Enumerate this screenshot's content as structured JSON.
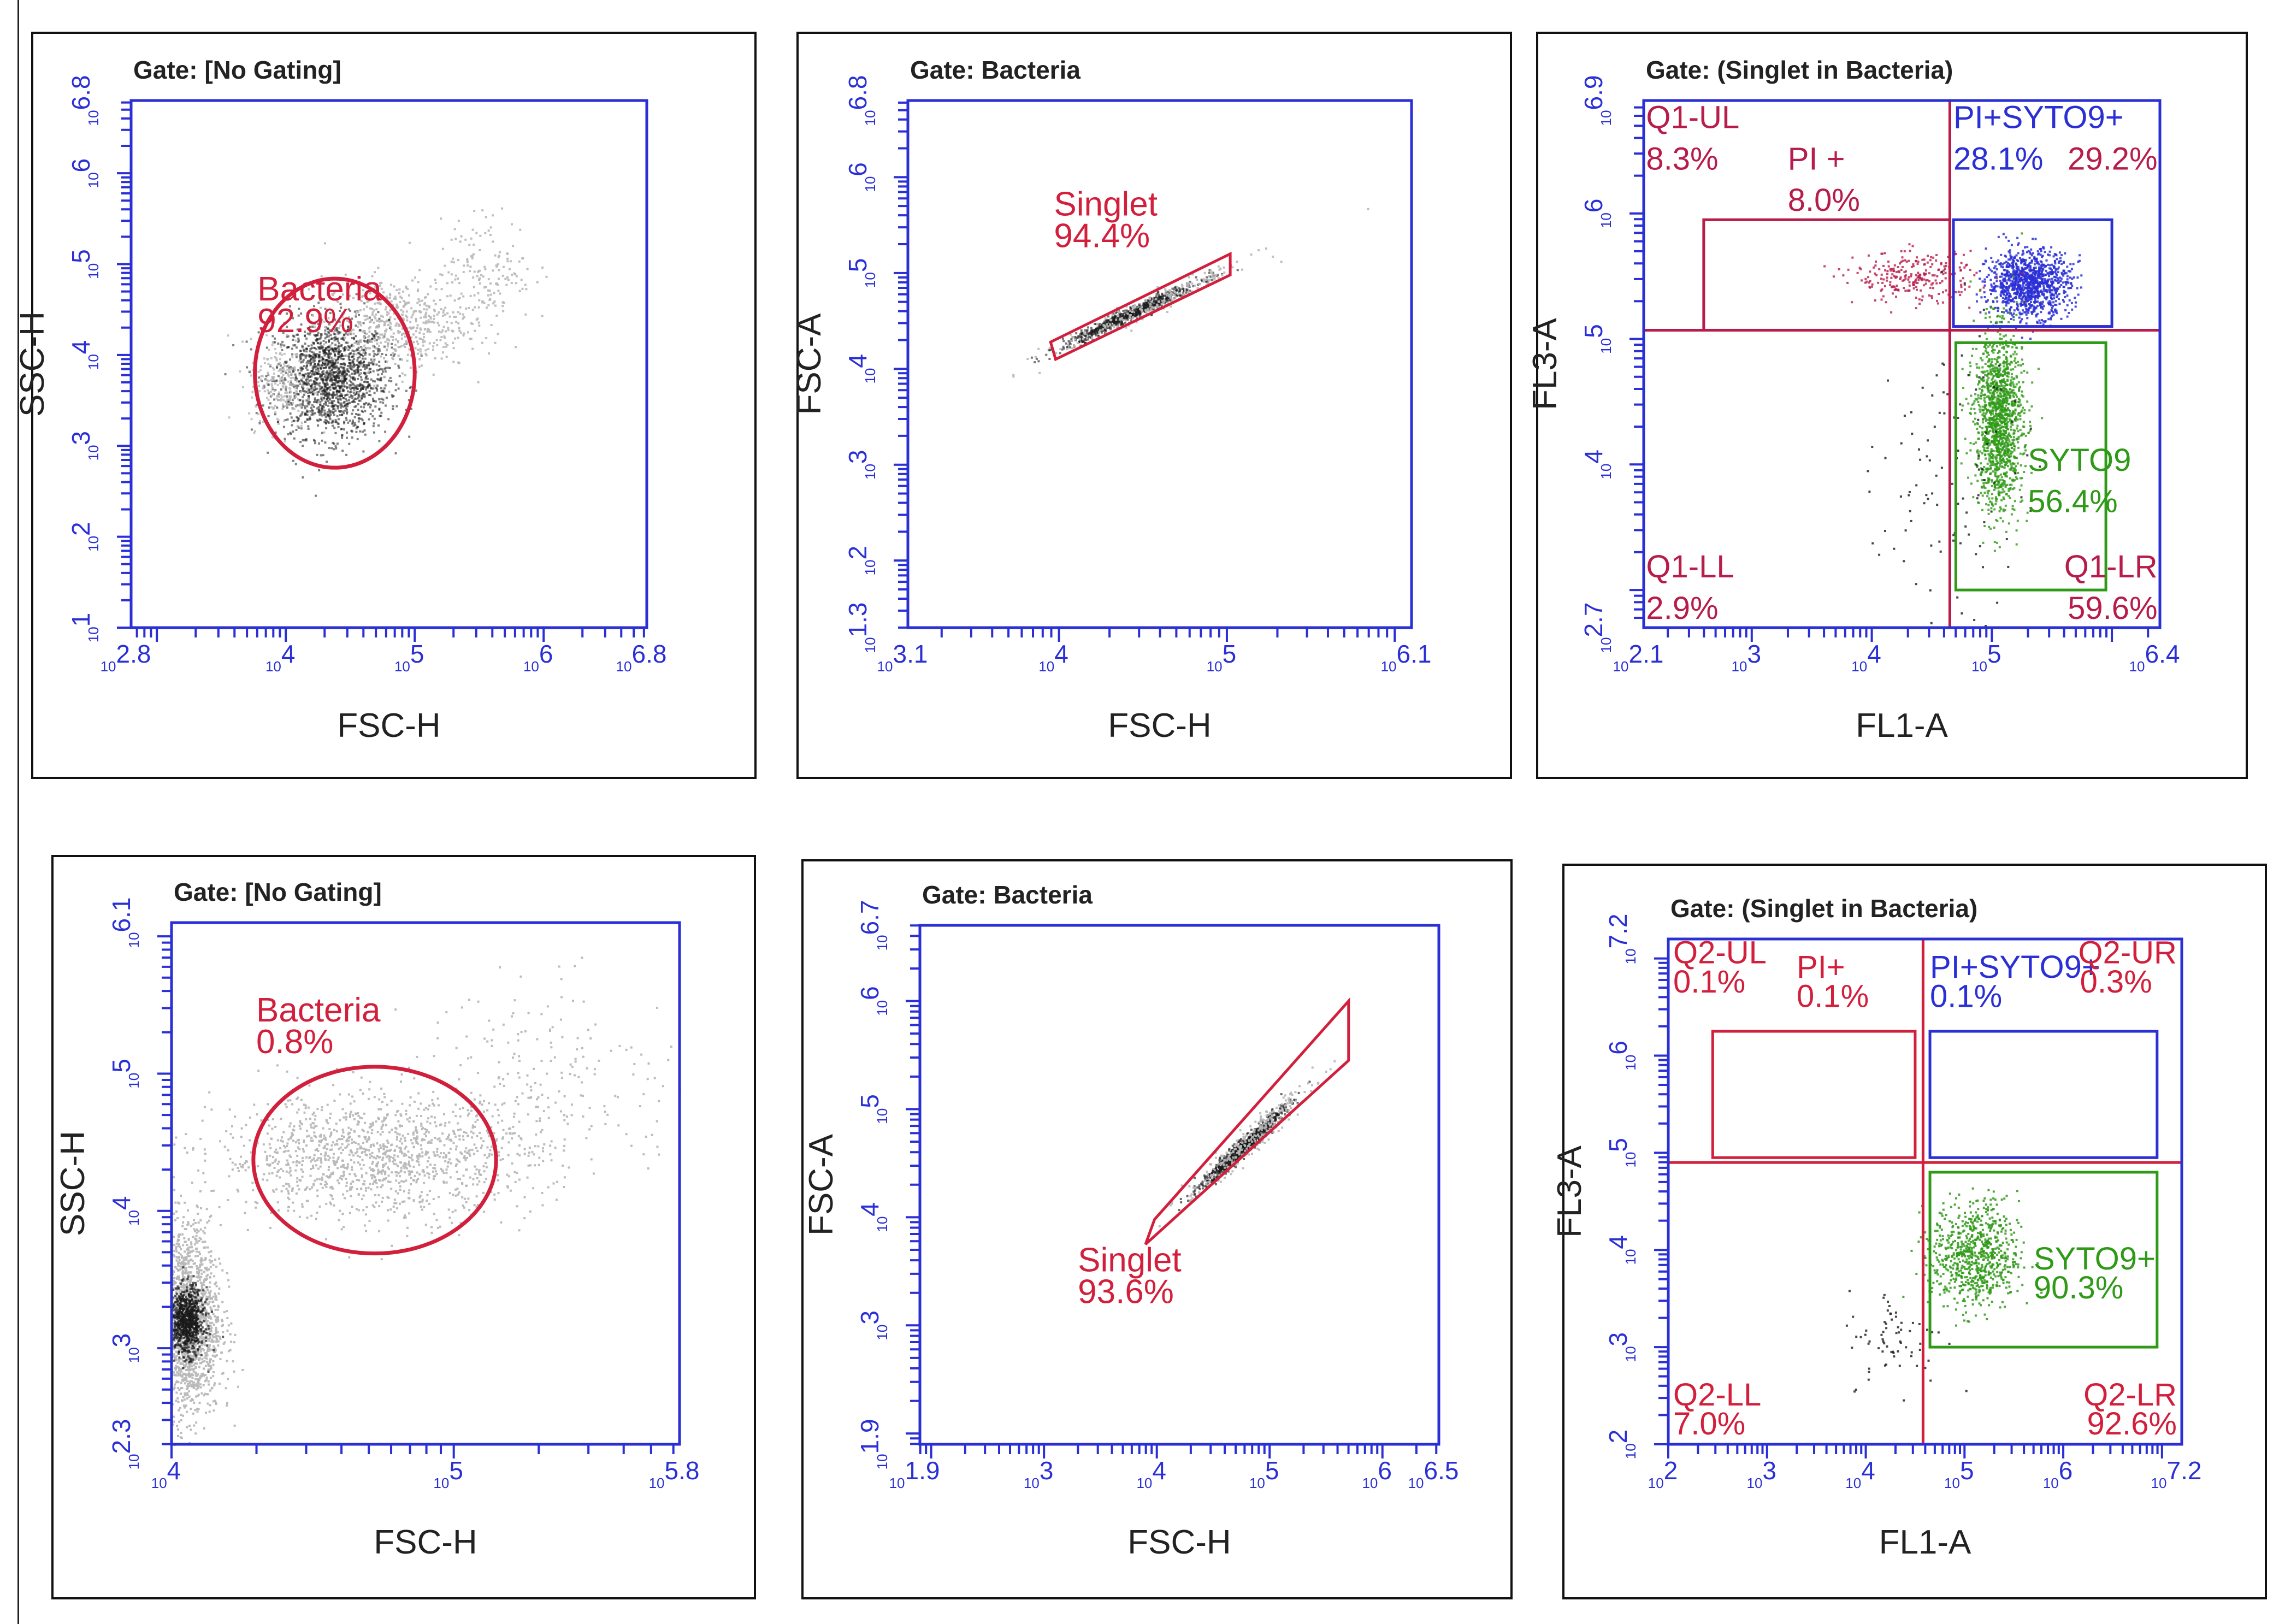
{
  "colors": {
    "axis": "#2a2fd6",
    "gate": "#d21f3c",
    "pi": "#b71c4a",
    "syto": "#2f9a17",
    "dots": "#1a1a1a",
    "light": "#b8b8b8"
  },
  "chart_data": [
    {
      "type": "scatter",
      "gate_title": "Gate:  [No Gating]",
      "xlabel": "FSC-H",
      "ylabel": "SSC-H",
      "xlim": [
        2.8,
        6.8
      ],
      "ylim": [
        1,
        6.8
      ],
      "x_ticks": [
        {
          "v": 2.8,
          "pre": "10",
          "exp": "2.8"
        },
        {
          "v": 4,
          "pre": "10",
          "exp": "4"
        },
        {
          "v": 5,
          "pre": "10",
          "exp": "5"
        },
        {
          "v": 6,
          "pre": "10",
          "exp": "6"
        },
        {
          "v": 6.8,
          "pre": "10",
          "exp": "6.8"
        }
      ],
      "y_ticks": [
        {
          "v": 1,
          "pre": "10",
          "exp": "1"
        },
        {
          "v": 2,
          "pre": "10",
          "exp": "2"
        },
        {
          "v": 3,
          "pre": "10",
          "exp": "3"
        },
        {
          "v": 4,
          "pre": "10",
          "exp": "4"
        },
        {
          "v": 5,
          "pre": "10",
          "exp": "5"
        },
        {
          "v": 6,
          "pre": "10",
          "exp": "6"
        },
        {
          "v": 6.8,
          "pre": "10",
          "exp": "6.8"
        }
      ],
      "gates": [
        {
          "shape": "ellipse",
          "name": "Bacteria",
          "pct": "92.9%",
          "cx": 4.38,
          "cy": 3.8,
          "rx": 0.62,
          "ry": 1.04,
          "color": "gate",
          "label_at": [
            3.78,
            4.6
          ]
        }
      ],
      "clusters": [
        {
          "cx": 4.35,
          "cy": 3.75,
          "sx": 0.22,
          "sy": 0.32,
          "n": 1600,
          "color": "dots",
          "opacity": 0.55
        },
        {
          "cx": 3.95,
          "cy": 3.7,
          "sx": 0.12,
          "sy": 0.25,
          "n": 220,
          "color": "light",
          "opacity": 0.8
        },
        {
          "cx": 4.85,
          "cy": 4.35,
          "sx": 0.28,
          "sy": 0.25,
          "n": 520,
          "color": "light",
          "opacity": 0.9
        },
        {
          "cx": 5.55,
          "cy": 4.95,
          "sx": 0.18,
          "sy": 0.3,
          "n": 160,
          "color": "light",
          "opacity": 0.9
        }
      ]
    },
    {
      "type": "scatter",
      "gate_title": "Gate:  Bacteria",
      "xlabel": "FSC-H",
      "ylabel": "FSC-A",
      "xlim": [
        3.1,
        6.1
      ],
      "ylim": [
        1.3,
        6.8
      ],
      "x_ticks": [
        {
          "v": 3.1,
          "pre": "10",
          "exp": "3.1"
        },
        {
          "v": 4,
          "pre": "10",
          "exp": "4"
        },
        {
          "v": 5,
          "pre": "10",
          "exp": "5"
        },
        {
          "v": 6.1,
          "pre": "10",
          "exp": "6.1"
        }
      ],
      "y_ticks": [
        {
          "v": 1.3,
          "pre": "10",
          "exp": "1.3"
        },
        {
          "v": 2,
          "pre": "10",
          "exp": "2"
        },
        {
          "v": 3,
          "pre": "10",
          "exp": "3"
        },
        {
          "v": 4,
          "pre": "10",
          "exp": "4"
        },
        {
          "v": 5,
          "pre": "10",
          "exp": "5"
        },
        {
          "v": 6,
          "pre": "10",
          "exp": "6"
        },
        {
          "v": 6.8,
          "pre": "10",
          "exp": "6.8"
        }
      ],
      "gates": [
        {
          "shape": "polygon",
          "name": "Singlet",
          "pct": "94.4%",
          "points": [
            [
              3.98,
              4.1
            ],
            [
              5.02,
              4.98
            ],
            [
              5.02,
              5.2
            ],
            [
              3.95,
              4.28
            ]
          ],
          "color": "gate",
          "label_at": [
            3.97,
            5.6
          ]
        }
      ],
      "clusters": [
        {
          "cx": 4.42,
          "cy": 4.58,
          "sx": 0.2,
          "sy": 0.035,
          "slope": 0.82,
          "n": 700,
          "color": "dots",
          "opacity": 0.6
        },
        {
          "cx": 4.55,
          "cy": 4.68,
          "sx": 0.3,
          "sy": 0.06,
          "slope": 0.82,
          "n": 200,
          "color": "light",
          "opacity": 0.9
        }
      ]
    },
    {
      "type": "scatter",
      "gate_title": "Gate:  (Singlet in Bacteria)",
      "xlabel": "FL1-A",
      "ylabel": "FL3-A",
      "xlim": [
        2.1,
        6.4
      ],
      "ylim": [
        2.7,
        6.9
      ],
      "x_ticks": [
        {
          "v": 2.1,
          "pre": "10",
          "exp": "2.1"
        },
        {
          "v": 3,
          "pre": "10",
          "exp": "3"
        },
        {
          "v": 4,
          "pre": "10",
          "exp": "4"
        },
        {
          "v": 5,
          "pre": "10",
          "exp": "5"
        },
        {
          "v": 6.4,
          "pre": "10",
          "exp": "6.4"
        }
      ],
      "y_ticks": [
        {
          "v": 2.7,
          "pre": "10",
          "exp": "2.7"
        },
        {
          "v": 4,
          "pre": "10",
          "exp": "4"
        },
        {
          "v": 5,
          "pre": "10",
          "exp": "5"
        },
        {
          "v": 6,
          "pre": "10",
          "exp": "6"
        },
        {
          "v": 6.9,
          "pre": "10",
          "exp": "6.9"
        }
      ],
      "quad": {
        "x": 4.65,
        "y": 5.07,
        "color": "pi"
      },
      "gates": [
        {
          "shape": "rect",
          "x0": 2.6,
          "y0": 5.07,
          "x1": 4.65,
          "y1": 5.95,
          "color": "pi"
        },
        {
          "shape": "rect",
          "x0": 4.68,
          "y0": 5.1,
          "x1": 6.0,
          "y1": 5.95,
          "color": "axis"
        },
        {
          "shape": "rect",
          "x0": 4.7,
          "y0": 3.0,
          "x1": 5.95,
          "y1": 4.97,
          "color": "syto"
        }
      ],
      "labels": [
        {
          "text": "Q1-UL",
          "x": 2.12,
          "y": 6.68,
          "color": "pi",
          "anchor": "start"
        },
        {
          "text": "8.3%",
          "x": 2.12,
          "y": 6.35,
          "color": "pi",
          "anchor": "start"
        },
        {
          "text": "PI +",
          "x": 3.3,
          "y": 6.35,
          "color": "pi",
          "anchor": "start"
        },
        {
          "text": "8.0%",
          "x": 3.3,
          "y": 6.02,
          "color": "pi",
          "anchor": "start"
        },
        {
          "text": "PI+SYTO9+",
          "x": 4.68,
          "y": 6.68,
          "color": "axis",
          "anchor": "start"
        },
        {
          "text": "28.1%",
          "x": 4.68,
          "y": 6.35,
          "color": "axis",
          "anchor": "start"
        },
        {
          "text": "29.2%",
          "x": 6.38,
          "y": 6.35,
          "color": "pi",
          "anchor": "end"
        },
        {
          "text": "SYTO9",
          "x": 5.3,
          "y": 3.95,
          "color": "syto",
          "anchor": "start"
        },
        {
          "text": "56.4%",
          "x": 5.3,
          "y": 3.62,
          "color": "syto",
          "anchor": "start"
        },
        {
          "text": "Q1-LL",
          "x": 2.12,
          "y": 3.1,
          "color": "pi",
          "anchor": "start"
        },
        {
          "text": "2.9%",
          "x": 2.12,
          "y": 2.77,
          "color": "pi",
          "anchor": "start"
        },
        {
          "text": "Q1-LR",
          "x": 6.38,
          "y": 3.1,
          "color": "pi",
          "anchor": "end"
        },
        {
          "text": "59.6%",
          "x": 6.38,
          "y": 2.77,
          "color": "pi",
          "anchor": "end"
        }
      ],
      "clusters": [
        {
          "cx": 5.3,
          "cy": 5.45,
          "sx": 0.17,
          "sy": 0.13,
          "n": 1100,
          "color": "axis",
          "opacity": 0.85
        },
        {
          "cx": 4.35,
          "cy": 5.5,
          "sx": 0.25,
          "sy": 0.1,
          "n": 260,
          "color": "pi",
          "opacity": 0.8
        },
        {
          "cx": 5.05,
          "cy": 4.35,
          "sx": 0.1,
          "sy": 0.35,
          "n": 1400,
          "color": "syto",
          "opacity": 0.8
        },
        {
          "cx": 4.65,
          "cy": 4.0,
          "sx": 0.3,
          "sy": 0.6,
          "n": 110,
          "color": "dots",
          "opacity": 0.8
        }
      ]
    },
    {
      "type": "scatter",
      "gate_title": "Gate:  [No Gating]",
      "xlabel": "FSC-H",
      "ylabel": "SSC-H",
      "xlim": [
        4,
        5.8
      ],
      "ylim": [
        2.3,
        6.1
      ],
      "x_ticks": [
        {
          "v": 4,
          "pre": "10",
          "exp": "4"
        },
        {
          "v": 5,
          "pre": "10",
          "exp": "5"
        },
        {
          "v": 5.8,
          "pre": "10",
          "exp": "5.8"
        }
      ],
      "y_ticks": [
        {
          "v": 2.3,
          "pre": "10",
          "exp": "2.3"
        },
        {
          "v": 3,
          "pre": "10",
          "exp": "3"
        },
        {
          "v": 4,
          "pre": "10",
          "exp": "4"
        },
        {
          "v": 5,
          "pre": "10",
          "exp": "5"
        },
        {
          "v": 6.1,
          "pre": "10",
          "exp": "6.1"
        }
      ],
      "gates": [
        {
          "shape": "ellipse",
          "name": "Bacteria",
          "pct": "0.8%",
          "cx": 4.72,
          "cy": 4.37,
          "rx": 0.43,
          "ry": 0.68,
          "color": "gate",
          "label_at": [
            4.3,
            5.38
          ]
        }
      ],
      "clusters": [
        {
          "cx": 4.05,
          "cy": 3.2,
          "sx": 0.06,
          "sy": 0.35,
          "n": 1800,
          "color": "light",
          "opacity": 0.95
        },
        {
          "cx": 4.05,
          "cy": 3.2,
          "sx": 0.03,
          "sy": 0.12,
          "n": 800,
          "color": "dots",
          "opacity": 0.7
        },
        {
          "cx": 4.72,
          "cy": 4.4,
          "sx": 0.28,
          "sy": 0.22,
          "n": 1300,
          "color": "light",
          "opacity": 0.95
        },
        {
          "cx": 5.35,
          "cy": 4.95,
          "sx": 0.25,
          "sy": 0.35,
          "n": 220,
          "color": "light",
          "opacity": 0.95
        }
      ]
    },
    {
      "type": "scatter",
      "gate_title": "Gate:  Bacteria",
      "xlabel": "FSC-H",
      "ylabel": "FSC-A",
      "xlim": [
        1.9,
        6.5
      ],
      "ylim": [
        1.9,
        6.7
      ],
      "x_ticks": [
        {
          "v": 1.9,
          "pre": "10",
          "exp": "1.9"
        },
        {
          "v": 3,
          "pre": "10",
          "exp": "3"
        },
        {
          "v": 4,
          "pre": "10",
          "exp": "4"
        },
        {
          "v": 5,
          "pre": "10",
          "exp": "5"
        },
        {
          "v": 6,
          "pre": "10",
          "exp": "6"
        },
        {
          "v": 6.5,
          "pre": "10",
          "exp": "6.5"
        }
      ],
      "y_ticks": [
        {
          "v": 1.9,
          "pre": "10",
          "exp": "1.9"
        },
        {
          "v": 3,
          "pre": "10",
          "exp": "3"
        },
        {
          "v": 4,
          "pre": "10",
          "exp": "4"
        },
        {
          "v": 5,
          "pre": "10",
          "exp": "5"
        },
        {
          "v": 6,
          "pre": "10",
          "exp": "6"
        },
        {
          "v": 6.7,
          "pre": "10",
          "exp": "6.7"
        }
      ],
      "gates": [
        {
          "shape": "polygon",
          "name": "Singlet",
          "pct": "93.6%",
          "points": [
            [
              3.9,
              3.75
            ],
            [
              5.7,
              5.45
            ],
            [
              5.7,
              6.0
            ],
            [
              3.98,
              3.98
            ]
          ],
          "color": "gate",
          "label_at": [
            3.3,
            3.5
          ]
        }
      ],
      "clusters": [
        {
          "cx": 4.75,
          "cy": 4.65,
          "sx": 0.18,
          "sy": 0.04,
          "slope": 0.95,
          "n": 800,
          "color": "dots",
          "opacity": 0.65
        },
        {
          "cx": 4.8,
          "cy": 4.7,
          "sx": 0.28,
          "sy": 0.07,
          "slope": 0.95,
          "n": 250,
          "color": "light",
          "opacity": 0.9
        }
      ]
    },
    {
      "type": "scatter",
      "gate_title": "Gate:  (Singlet in Bacteria)",
      "xlabel": "FL1-A",
      "ylabel": "FL3-A",
      "xlim": [
        2,
        7.2
      ],
      "ylim": [
        2,
        7.2
      ],
      "x_ticks": [
        {
          "v": 2,
          "pre": "10",
          "exp": "2"
        },
        {
          "v": 3,
          "pre": "10",
          "exp": "3"
        },
        {
          "v": 4,
          "pre": "10",
          "exp": "4"
        },
        {
          "v": 5,
          "pre": "10",
          "exp": "5"
        },
        {
          "v": 6,
          "pre": "10",
          "exp": "6"
        },
        {
          "v": 7.2,
          "pre": "10",
          "exp": "7.2"
        }
      ],
      "y_ticks": [
        {
          "v": 2,
          "pre": "10",
          "exp": "2"
        },
        {
          "v": 3,
          "pre": "10",
          "exp": "3"
        },
        {
          "v": 4,
          "pre": "10",
          "exp": "4"
        },
        {
          "v": 5,
          "pre": "10",
          "exp": "5"
        },
        {
          "v": 6,
          "pre": "10",
          "exp": "6"
        },
        {
          "v": 7.2,
          "pre": "10",
          "exp": "7.2"
        }
      ],
      "quad": {
        "x": 4.58,
        "y": 4.9,
        "color": "gate"
      },
      "gates": [
        {
          "shape": "rect",
          "x0": 2.45,
          "y0": 4.95,
          "x1": 4.5,
          "y1": 6.25,
          "color": "gate"
        },
        {
          "shape": "rect",
          "x0": 4.65,
          "y0": 4.95,
          "x1": 6.95,
          "y1": 6.25,
          "color": "axis"
        },
        {
          "shape": "rect",
          "x0": 4.65,
          "y0": 3.0,
          "x1": 6.95,
          "y1": 4.8,
          "color": "syto"
        }
      ],
      "labels": [
        {
          "text": "Q2-UL",
          "x": 2.05,
          "y": 6.95,
          "color": "gate",
          "anchor": "start"
        },
        {
          "text": "0.1%",
          "x": 2.05,
          "y": 6.65,
          "color": "gate",
          "anchor": "start"
        },
        {
          "text": "PI+",
          "x": 3.3,
          "y": 6.8,
          "color": "gate",
          "anchor": "start"
        },
        {
          "text": "0.1%",
          "x": 3.3,
          "y": 6.5,
          "color": "gate",
          "anchor": "start"
        },
        {
          "text": "PI+SYTO9+",
          "x": 4.65,
          "y": 6.8,
          "color": "axis",
          "anchor": "start"
        },
        {
          "text": "0.1%",
          "x": 4.65,
          "y": 6.5,
          "color": "axis",
          "anchor": "start"
        },
        {
          "text": "Q2-UR",
          "x": 7.15,
          "y": 6.95,
          "color": "gate",
          "anchor": "end"
        },
        {
          "text": "0.3%",
          "x": 6.9,
          "y": 6.65,
          "color": "gate",
          "anchor": "end"
        },
        {
          "text": "SYTO9+",
          "x": 5.7,
          "y": 3.8,
          "color": "syto",
          "anchor": "start"
        },
        {
          "text": "90.3%",
          "x": 5.7,
          "y": 3.5,
          "color": "syto",
          "anchor": "start"
        },
        {
          "text": "Q2-LL",
          "x": 2.05,
          "y": 2.4,
          "color": "gate",
          "anchor": "start"
        },
        {
          "text": "7.0%",
          "x": 2.05,
          "y": 2.1,
          "color": "gate",
          "anchor": "start"
        },
        {
          "text": "Q2-LR",
          "x": 7.15,
          "y": 2.4,
          "color": "gate",
          "anchor": "end"
        },
        {
          "text": "92.6%",
          "x": 7.15,
          "y": 2.1,
          "color": "gate",
          "anchor": "end"
        }
      ],
      "clusters": [
        {
          "cx": 5.1,
          "cy": 3.95,
          "sx": 0.22,
          "sy": 0.28,
          "n": 750,
          "color": "syto",
          "opacity": 0.85
        },
        {
          "cx": 4.3,
          "cy": 3.1,
          "sx": 0.25,
          "sy": 0.25,
          "n": 70,
          "color": "dots",
          "opacity": 0.8
        }
      ]
    }
  ]
}
